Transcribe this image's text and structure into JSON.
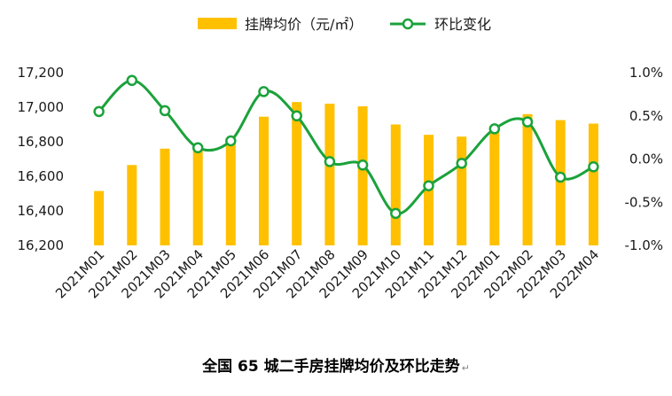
{
  "chart_data": {
    "type": "bar+line",
    "title": "全国 65 城二手房挂牌均价及环比走势",
    "title_mark": "↵",
    "categories": [
      "2021M01",
      "2021M02",
      "2021M03",
      "2021M04",
      "2021M05",
      "2021M06",
      "2021M07",
      "2021M08",
      "2021M09",
      "2021M10",
      "2021M11",
      "2021M12",
      "2022M01",
      "2022M02",
      "2022M03",
      "2022M04"
    ],
    "series": [
      {
        "name": "挂牌均价（元/㎡）",
        "type": "bar",
        "axis": "left",
        "color": "#FFC000",
        "values": [
          16515,
          16665,
          16760,
          16780,
          16820,
          16945,
          17030,
          17020,
          17005,
          16900,
          16840,
          16830,
          16880,
          16960,
          16925,
          16905
        ]
      },
      {
        "name": "环比变化",
        "type": "line",
        "axis": "right",
        "color": "#1BA23B",
        "unit": "%",
        "values": [
          0.55,
          0.91,
          0.56,
          0.13,
          0.21,
          0.78,
          0.5,
          -0.03,
          -0.07,
          -0.63,
          -0.31,
          -0.05,
          0.35,
          0.43,
          -0.21,
          -0.09
        ]
      }
    ],
    "y_left": {
      "min": 16200,
      "max": 17200,
      "ticks": [
        "16,200",
        "16,400",
        "16,600",
        "16,800",
        "17,000",
        "17,200"
      ],
      "tick_values": [
        16200,
        16400,
        16600,
        16800,
        17000,
        17200
      ]
    },
    "y_right": {
      "min": -1.0,
      "max": 1.0,
      "ticks": [
        "-1.0%",
        "-0.5%",
        "0.0%",
        "0.5%",
        "1.0%"
      ],
      "tick_values": [
        -1.0,
        -0.5,
        0.0,
        0.5,
        1.0
      ]
    },
    "legend_position": "top-center"
  }
}
